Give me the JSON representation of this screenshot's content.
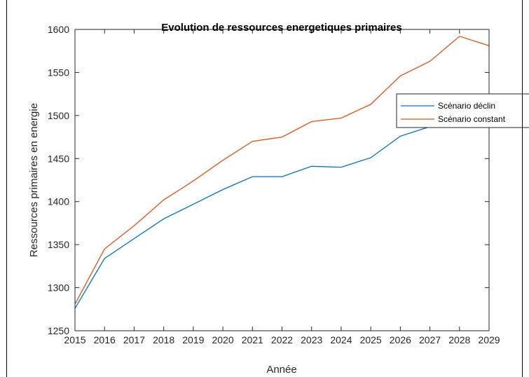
{
  "chart_data": {
    "type": "line",
    "title": "Evolution de ressources energetiques primaires",
    "xlabel": "Année",
    "ylabel": "Ressources primaires en energie",
    "x": [
      2015,
      2016,
      2017,
      2018,
      2019,
      2020,
      2021,
      2022,
      2023,
      2024,
      2025,
      2026,
      2027,
      2028,
      2029
    ],
    "xlim": [
      2015,
      2029
    ],
    "ylim": [
      1250,
      1600
    ],
    "yticks": [
      1250,
      1300,
      1350,
      1400,
      1450,
      1500,
      1550,
      1600
    ],
    "grid": false,
    "legend_position": "top-right",
    "series": [
      {
        "name": "Scénario déclin",
        "color": "#0072BD",
        "values": [
          1276,
          1334,
          1357,
          1380,
          1397,
          1414,
          1429,
          1429,
          1441,
          1440,
          1451,
          1476,
          1487,
          1510,
          1525
        ]
      },
      {
        "name": "Scénario constant",
        "color": "#D95319",
        "values": [
          1281,
          1345,
          1372,
          1402,
          1424,
          1448,
          1470,
          1475,
          1493,
          1497,
          1513,
          1546,
          1563,
          1592,
          1581
        ]
      }
    ]
  }
}
